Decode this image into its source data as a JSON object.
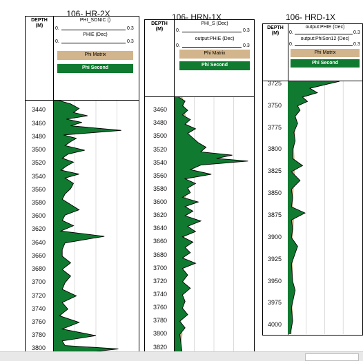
{
  "wells": [
    {
      "title": "106- HR-2X",
      "depth_header": "DEPTH\n(M)",
      "curves": [
        {
          "name": "PHI_SONIC ()",
          "lo": "0.",
          "hi": "0.3"
        },
        {
          "name": "PHIE (Dec)",
          "lo": "0.",
          "hi": "0.3"
        }
      ],
      "fills": [
        "Phi Matrix",
        "Phi Second"
      ],
      "depth_ticks": [
        "3440",
        "3460",
        "3480",
        "3500",
        "3520",
        "3540",
        "3560",
        "3580",
        "3600",
        "3620",
        "3640",
        "3660",
        "3680",
        "3700",
        "3720",
        "3740",
        "3760",
        "3780",
        "3800"
      ]
    },
    {
      "title": "106- HRN-1X",
      "depth_header": "DEPTH\n(M)",
      "curves": [
        {
          "name": "PHI_S (Dec)",
          "lo": "0.",
          "hi": "0.3"
        },
        {
          "name": "output:PHIE (Dec)",
          "lo": "0.",
          "hi": "0.3"
        }
      ],
      "fills": [
        "Phi Matrix",
        "Phi Second"
      ],
      "depth_ticks": [
        "3460",
        "3480",
        "3500",
        "3520",
        "3540",
        "3560",
        "3580",
        "3600",
        "3620",
        "3640",
        "3660",
        "3680",
        "3700",
        "3720",
        "3740",
        "3760",
        "3780",
        "3800",
        "3820"
      ]
    },
    {
      "title": "106- HRD-1X",
      "depth_header": "DEPTH\n(M)",
      "curves": [
        {
          "name": "output:PHIE (Dec)",
          "lo": "0.",
          "hi": "0.3"
        },
        {
          "name": "output:PhiSon12 (Dec)",
          "lo": "0.",
          "hi": "0.3"
        }
      ],
      "fills": [
        "Phi Matrix",
        "Phi Second"
      ],
      "depth_ticks": [
        "3725",
        "3750",
        "3775",
        "3800",
        "3825",
        "3850",
        "3875",
        "3900",
        "3925",
        "3950",
        "3975",
        "4000"
      ]
    }
  ],
  "colors": {
    "matrix": "#d2b58c",
    "second": "#0f7a30",
    "curve": "#000000"
  },
  "chart_data": [
    {
      "type": "area",
      "title": "106- HR-2X",
      "ylabel": "DEPTH (M)",
      "xlim": [
        0,
        0.3
      ],
      "ylim": [
        3425,
        3810
      ],
      "y_reversed": true,
      "series": [
        {
          "name": "PHIE (Dec)",
          "x": [
            0.018,
            0.06,
            0.09,
            0.07,
            0.12,
            0.045,
            0.1,
            0.06,
            0.24,
            0.035,
            0.08,
            0.06,
            0.04,
            0.11,
            0.05,
            0.03,
            0.07,
            0.045,
            0.025,
            0.09,
            0.04,
            0.07,
            0.06,
            0.04,
            0.03,
            0.06,
            0.09,
            0.04,
            0.03,
            0.07,
            0.025,
            0.18,
            0.04,
            0.03,
            0.03,
            0.06,
            0.03,
            0.06,
            0.04,
            0.03,
            0.08,
            0.03,
            0.05,
            0.02,
            0.09,
            0.03,
            0.15,
            0.03,
            0.04,
            0.23,
            0.03
          ],
          "y": [
            3425,
            3430,
            3437,
            3443,
            3448,
            3453,
            3458,
            3463,
            3470,
            3477,
            3482,
            3487,
            3493,
            3500,
            3506,
            3512,
            3518,
            3524,
            3530,
            3536,
            3542,
            3550,
            3558,
            3566,
            3574,
            3582,
            3590,
            3598,
            3606,
            3614,
            3622,
            3630,
            3640,
            3650,
            3660,
            3670,
            3680,
            3690,
            3700,
            3710,
            3720,
            3730,
            3740,
            3750,
            3760,
            3770,
            3780,
            3788,
            3795,
            3800,
            3810
          ]
        },
        {
          "name": "PHI_SONIC ()",
          "x": [
            0.02,
            0.035,
            0.04,
            0.03,
            0.045,
            0.03,
            0.04,
            0.035,
            0.03,
            0.04,
            0.03,
            0.035,
            0.03,
            0.025,
            0.03,
            0.03,
            0.025,
            0.03,
            0.025,
            0.03,
            0.025
          ],
          "y": [
            3425,
            3440,
            3455,
            3470,
            3485,
            3500,
            3515,
            3530,
            3545,
            3560,
            3580,
            3600,
            3620,
            3640,
            3660,
            3680,
            3700,
            3730,
            3760,
            3790,
            3810
          ]
        }
      ]
    },
    {
      "type": "area",
      "title": "106- HRN-1X",
      "ylabel": "DEPTH (M)",
      "xlim": [
        0,
        0.3
      ],
      "ylim": [
        3440,
        3832
      ],
      "y_reversed": true,
      "series": [
        {
          "name": "output:PHIE (Dec)",
          "x": [
            0.015,
            0.04,
            0.03,
            0.05,
            0.03,
            0.06,
            0.04,
            0.08,
            0.05,
            0.07,
            0.09,
            0.12,
            0.1,
            0.22,
            0.16,
            0.28,
            0.1,
            0.06,
            0.14,
            0.04,
            0.08,
            0.05,
            0.06,
            0.03,
            0.09,
            0.04,
            0.07,
            0.04,
            0.1,
            0.05,
            0.08,
            0.03,
            0.07,
            0.04,
            0.06,
            0.03,
            0.08,
            0.03,
            0.05,
            0.03,
            0.06,
            0.03,
            0.04,
            0.03,
            0.05,
            0.02,
            0.04,
            0.02,
            0.03
          ],
          "y": [
            3440,
            3446,
            3453,
            3460,
            3467,
            3474,
            3481,
            3488,
            3495,
            3502,
            3509,
            3516,
            3523,
            3528,
            3533,
            3537,
            3543,
            3550,
            3557,
            3564,
            3571,
            3578,
            3585,
            3592,
            3599,
            3606,
            3613,
            3620,
            3628,
            3636,
            3644,
            3652,
            3660,
            3668,
            3676,
            3684,
            3692,
            3700,
            3710,
            3720,
            3730,
            3740,
            3750,
            3760,
            3770,
            3780,
            3790,
            3800,
            3832
          ]
        },
        {
          "name": "PHI_S (Dec)",
          "x": [
            0.03,
            0.04,
            0.045,
            0.05,
            0.06,
            0.05,
            0.045,
            0.04,
            0.045,
            0.04,
            0.035,
            0.04,
            0.035,
            0.03,
            0.035,
            0.03,
            0.03,
            0.025,
            0.03,
            0.025,
            0.03
          ],
          "y": [
            3440,
            3460,
            3480,
            3500,
            3520,
            3540,
            3560,
            3580,
            3600,
            3620,
            3640,
            3660,
            3680,
            3700,
            3720,
            3740,
            3760,
            3780,
            3800,
            3815,
            3832
          ]
        }
      ]
    },
    {
      "type": "area",
      "title": "106- HRD-1X",
      "ylabel": "DEPTH (M)",
      "xlim": [
        0,
        0.3
      ],
      "ylim": [
        3722,
        4010
      ],
      "y_reversed": true,
      "series": [
        {
          "name": "output:PHIE (Dec)",
          "x": [
            0.21,
            0.15,
            0.09,
            0.12,
            0.06,
            0.08,
            0.04,
            0.05,
            0.03,
            0.04,
            0.025,
            0.03,
            0.02,
            0.02,
            0.06,
            0.015,
            0.05,
            0.015,
            0.02,
            0.015,
            0.07,
            0.015,
            0.02,
            0.015,
            0.04,
            0.015,
            0.02,
            0.03,
            0.015,
            0.02,
            0.01
          ],
          "y": [
            3722,
            3726,
            3730,
            3735,
            3740,
            3745,
            3750,
            3755,
            3762,
            3770,
            3780,
            3790,
            3800,
            3810,
            3818,
            3825,
            3835,
            3845,
            3855,
            3865,
            3872,
            3880,
            3890,
            3900,
            3910,
            3930,
            3950,
            3960,
            3980,
            3995,
            4010
          ]
        },
        {
          "name": "output:PhiSon12 (Dec)",
          "x": [
            0.04,
            0.035,
            0.03,
            0.03,
            0.025,
            0.03,
            0.025,
            0.02,
            0.025,
            0.02,
            0.02,
            0.02,
            0.015,
            0.02,
            0.015
          ],
          "y": [
            3722,
            3740,
            3760,
            3780,
            3800,
            3820,
            3840,
            3860,
            3880,
            3900,
            3920,
            3940,
            3960,
            3985,
            4010
          ]
        }
      ]
    }
  ]
}
